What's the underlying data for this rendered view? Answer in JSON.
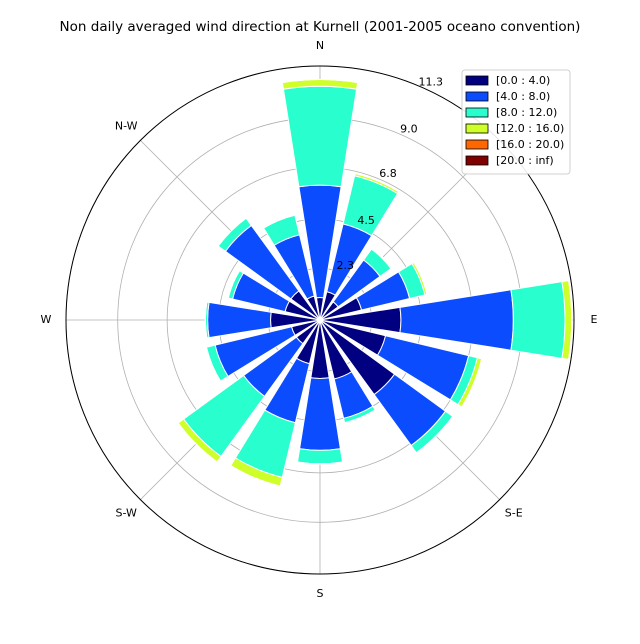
{
  "chart_data": {
    "type": "windrose",
    "title": "Non daily averaged wind direction at Kurnell (2001-2005 oceano convention)",
    "angle_labels": [
      "E",
      null,
      "N",
      "N-W",
      "W",
      "S-W",
      "S",
      "S-E"
    ],
    "ylim": [
      0,
      11.3
    ],
    "yticks": [
      2.3,
      4.5,
      6.8,
      {
        "value": 9,
        "label": "9.0"
      },
      11.3
    ],
    "grid": true,
    "legend": "upper right",
    "series": [
      {
        "name": "[0.0 : 4.0)",
        "color": "#000080",
        "values": [
          1.0,
          1.3,
          1.0,
          1.9,
          3.6,
          3.0,
          4.1,
          2.7,
          2.6,
          2.0,
          1.3,
          1.3,
          2.2,
          1.6,
          1.6,
          1.1
        ]
      },
      {
        "name": "[4.0 : 8.0)",
        "color": "#0c4cff",
        "values": [
          5.0,
          3.1,
          2.3,
          2.2,
          5.0,
          3.8,
          2.8,
          1.8,
          3.2,
          2.7,
          2.9,
          3.5,
          2.8,
          2.4,
          3.6,
          2.8
        ]
      },
      {
        "name": "[8.0 : 12.0)",
        "color": "#29ffce",
        "values": [
          4.4,
          2.2,
          0.6,
          0.7,
          2.3,
          0.4,
          0.4,
          0.2,
          0.6,
          2.5,
          3.3,
          0.4,
          0.1,
          0.2,
          0.4,
          0.9
        ]
      },
      {
        "name": "[12.0 : 16.0)",
        "color": "#ceff29",
        "values": [
          0.3,
          0.1,
          0.05,
          0.1,
          0.3,
          0.2,
          0,
          0,
          0,
          0.4,
          0.3,
          0,
          0,
          0,
          0,
          0
        ]
      },
      {
        "name": "[16.0 : 20.0)",
        "color": "#ff6800",
        "values": [
          0,
          0,
          0,
          0,
          0,
          0,
          0,
          0,
          0,
          0,
          0,
          0,
          0,
          0,
          0,
          0
        ]
      },
      {
        "name": "[20.0 : inf)",
        "color": "#800000",
        "values": [
          0,
          0,
          0,
          0,
          0,
          0,
          0,
          0,
          0,
          0,
          0,
          0,
          0,
          0,
          0,
          0
        ]
      }
    ]
  }
}
